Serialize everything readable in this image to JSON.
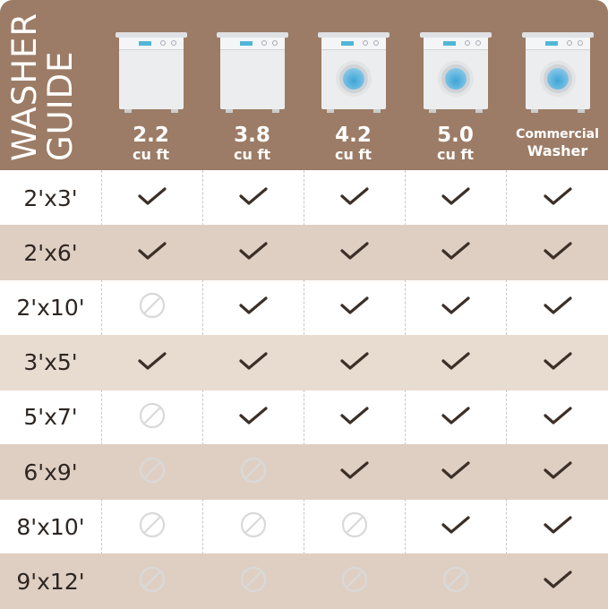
{
  "title": [
    "WASHER",
    "GUIDE"
  ],
  "colors": {
    "header": "#9c7c66",
    "row_alt": "#dfcfc2",
    "check": "#3b2f28",
    "no": "#d9d9d9"
  },
  "columns": [
    {
      "size": "2.2",
      "unit": "cu ft",
      "type": "top-load"
    },
    {
      "size": "3.8",
      "unit": "cu ft",
      "type": "top-load"
    },
    {
      "size": "4.2",
      "unit": "cu ft",
      "type": "front-load"
    },
    {
      "size": "5.0",
      "unit": "cu ft",
      "type": "front-load"
    },
    {
      "size": "Commercial",
      "unit": "Washer",
      "type": "front-load"
    }
  ],
  "rows": [
    {
      "label": "2'x3'",
      "fits": [
        true,
        true,
        true,
        true,
        true
      ]
    },
    {
      "label": "2'x6'",
      "fits": [
        true,
        true,
        true,
        true,
        true
      ]
    },
    {
      "label": "2'x10'",
      "fits": [
        false,
        true,
        true,
        true,
        true
      ]
    },
    {
      "label": "3'x5'",
      "fits": [
        true,
        true,
        true,
        true,
        true
      ]
    },
    {
      "label": "5'x7'",
      "fits": [
        false,
        true,
        true,
        true,
        true
      ]
    },
    {
      "label": "6'x9'",
      "fits": [
        false,
        false,
        true,
        true,
        true
      ]
    },
    {
      "label": "8'x10'",
      "fits": [
        false,
        false,
        false,
        true,
        true
      ]
    },
    {
      "label": "9'x12'",
      "fits": [
        false,
        false,
        false,
        false,
        true
      ]
    }
  ]
}
